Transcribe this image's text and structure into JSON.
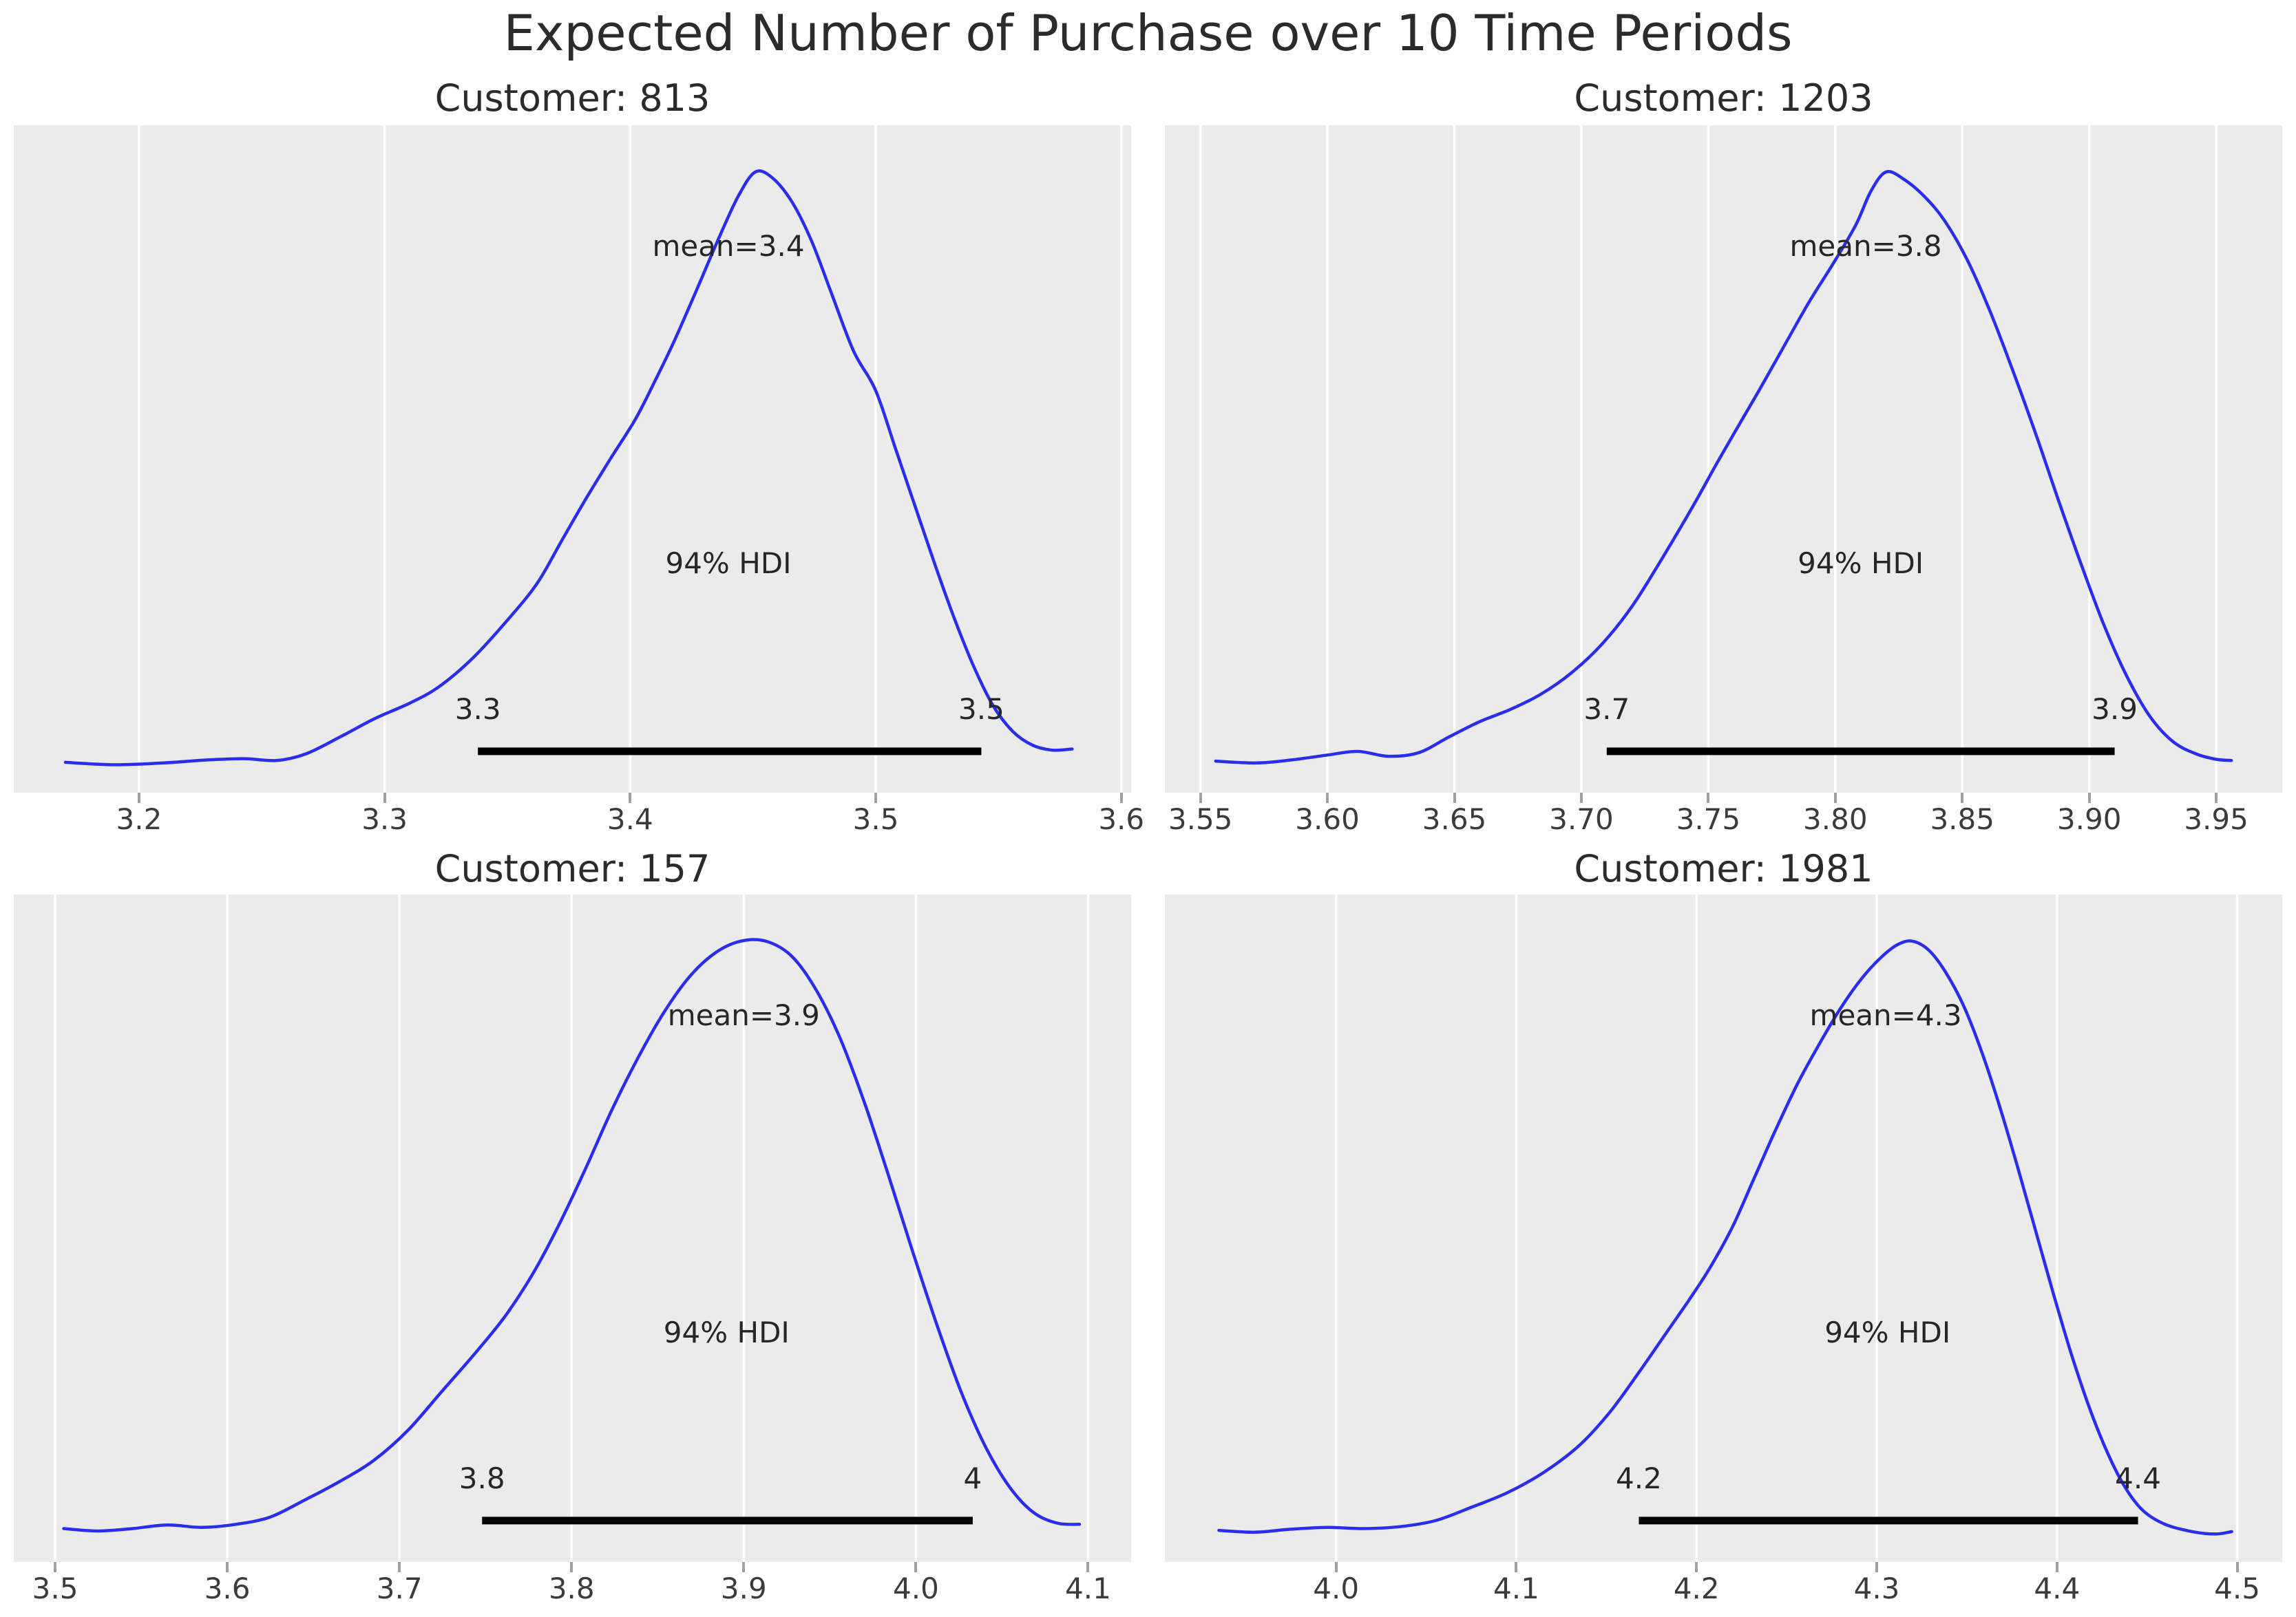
{
  "figure": {
    "title": "Expected Number of Purchase over 10 Time Periods"
  },
  "style": {
    "plot_bg": "#ebebeb",
    "grid_color": "#ffffff",
    "curve_color": "#2a2eec",
    "hdi_bar_color": "#000000",
    "tick_label_color": "#3b3b3b",
    "tick_mark_color": "#a0a0a0",
    "annotation_color": "#262626"
  },
  "chart_data": [
    {
      "type": "kde",
      "title": "Customer: 813",
      "mean": 3.4,
      "hdi_prob": 0.94,
      "hdi": [
        3.338,
        3.543
      ],
      "xlim": [
        3.149,
        3.604
      ],
      "xticks": [
        3.2,
        3.3,
        3.4,
        3.5,
        3.6
      ],
      "xtick_labels": [
        "3.2",
        "3.3",
        "3.4",
        "3.5",
        "3.6"
      ],
      "annotations": {
        "mean_label": "mean=3.4",
        "hdi_label": "94% HDI",
        "hdi_low_label": "3.3",
        "hdi_high_label": "3.5",
        "mean_label_x": 3.44,
        "hdi_label_x": 3.44
      },
      "curve": {
        "x": [
          3.17,
          3.19,
          3.21,
          3.228,
          3.243,
          3.256,
          3.268,
          3.282,
          3.296,
          3.31,
          3.322,
          3.336,
          3.35,
          3.362,
          3.372,
          3.382,
          3.392,
          3.402,
          3.41,
          3.418,
          3.427,
          3.436,
          3.444,
          3.451,
          3.458,
          3.466,
          3.474,
          3.482,
          3.491,
          3.5,
          3.508,
          3.516,
          3.524,
          3.532,
          3.54,
          3.548,
          3.556,
          3.564,
          3.572,
          3.58
        ],
        "density": [
          0.028,
          0.024,
          0.027,
          0.032,
          0.034,
          0.031,
          0.042,
          0.07,
          0.1,
          0.125,
          0.152,
          0.2,
          0.262,
          0.322,
          0.392,
          0.462,
          0.528,
          0.592,
          0.655,
          0.722,
          0.805,
          0.89,
          0.96,
          1.0,
          0.99,
          0.95,
          0.885,
          0.8,
          0.705,
          0.64,
          0.545,
          0.45,
          0.355,
          0.265,
          0.185,
          0.12,
          0.078,
          0.056,
          0.048,
          0.05
        ]
      }
    },
    {
      "type": "kde",
      "title": "Customer: 1203",
      "mean": 3.8,
      "hdi_prob": 0.94,
      "hdi": [
        3.71,
        3.91
      ],
      "xlim": [
        3.536,
        3.976
      ],
      "xticks": [
        3.55,
        3.6,
        3.65,
        3.7,
        3.75,
        3.8,
        3.85,
        3.9,
        3.95
      ],
      "xtick_labels": [
        "3.55",
        "3.60",
        "3.65",
        "3.70",
        "3.75",
        "3.80",
        "3.85",
        "3.90",
        "3.95"
      ],
      "annotations": {
        "mean_label": "mean=3.8",
        "hdi_label": "94% HDI",
        "hdi_low_label": "3.7",
        "hdi_high_label": "3.9",
        "mean_label_x": 3.812,
        "hdi_label_x": 3.81
      },
      "curve": {
        "x": [
          3.556,
          3.572,
          3.586,
          3.6,
          3.612,
          3.624,
          3.636,
          3.648,
          3.66,
          3.672,
          3.684,
          3.696,
          3.708,
          3.72,
          3.732,
          3.744,
          3.754,
          3.763,
          3.772,
          3.781,
          3.79,
          3.799,
          3.808,
          3.814,
          3.82,
          3.827,
          3.835,
          3.843,
          3.852,
          3.861,
          3.87,
          3.879,
          3.888,
          3.897,
          3.906,
          3.915,
          3.924,
          3.933,
          3.942,
          3.95,
          3.956
        ],
        "density": [
          0.03,
          0.027,
          0.032,
          0.04,
          0.046,
          0.038,
          0.044,
          0.07,
          0.095,
          0.115,
          0.14,
          0.175,
          0.222,
          0.285,
          0.365,
          0.45,
          0.525,
          0.59,
          0.655,
          0.722,
          0.788,
          0.848,
          0.912,
          0.968,
          1.0,
          0.988,
          0.96,
          0.92,
          0.855,
          0.77,
          0.672,
          0.568,
          0.458,
          0.352,
          0.252,
          0.168,
          0.103,
          0.062,
          0.042,
          0.033,
          0.031
        ]
      }
    },
    {
      "type": "kde",
      "title": "Customer: 157",
      "mean": 3.9,
      "hdi_prob": 0.94,
      "hdi": [
        3.748,
        4.033
      ],
      "xlim": [
        3.476,
        4.125
      ],
      "xticks": [
        3.5,
        3.6,
        3.7,
        3.8,
        3.9,
        4.0,
        4.1
      ],
      "xtick_labels": [
        "3.5",
        "3.6",
        "3.7",
        "3.8",
        "3.9",
        "4.0",
        "4.1"
      ],
      "annotations": {
        "mean_label": "mean=3.9",
        "hdi_label": "94% HDI",
        "hdi_low_label": "3.8",
        "hdi_high_label": "4",
        "mean_label_x": 3.9,
        "hdi_label_x": 3.89
      },
      "curve": {
        "x": [
          3.505,
          3.525,
          3.545,
          3.565,
          3.585,
          3.605,
          3.625,
          3.645,
          3.665,
          3.685,
          3.705,
          3.725,
          3.745,
          3.762,
          3.778,
          3.793,
          3.808,
          3.823,
          3.838,
          3.853,
          3.868,
          3.883,
          3.898,
          3.913,
          3.928,
          3.942,
          3.956,
          3.97,
          3.984,
          3.998,
          4.012,
          4.026,
          4.04,
          4.054,
          4.068,
          4.082,
          4.095
        ],
        "density": [
          0.033,
          0.029,
          0.033,
          0.039,
          0.035,
          0.04,
          0.052,
          0.08,
          0.11,
          0.145,
          0.195,
          0.26,
          0.325,
          0.385,
          0.455,
          0.535,
          0.625,
          0.72,
          0.805,
          0.88,
          0.94,
          0.98,
          1.0,
          1.0,
          0.975,
          0.92,
          0.84,
          0.735,
          0.615,
          0.49,
          0.37,
          0.26,
          0.17,
          0.103,
          0.06,
          0.042,
          0.04
        ]
      }
    },
    {
      "type": "kde",
      "title": "Customer: 1981",
      "mean": 4.3,
      "hdi_prob": 0.94,
      "hdi": [
        4.168,
        4.445
      ],
      "xlim": [
        3.905,
        4.525
      ],
      "xticks": [
        4.0,
        4.1,
        4.2,
        4.3,
        4.4,
        4.5
      ],
      "xtick_labels": [
        "4.0",
        "4.1",
        "4.2",
        "4.3",
        "4.4",
        "4.5"
      ],
      "annotations": {
        "mean_label": "mean=4.3",
        "hdi_label": "94% HDI",
        "hdi_low_label": "4.2",
        "hdi_high_label": "4.4",
        "mean_label_x": 4.305,
        "hdi_label_x": 4.306
      },
      "curve": {
        "x": [
          3.935,
          3.955,
          3.975,
          3.995,
          4.015,
          4.035,
          4.055,
          4.075,
          4.095,
          4.115,
          4.135,
          4.152,
          4.168,
          4.182,
          4.196,
          4.208,
          4.22,
          4.232,
          4.244,
          4.256,
          4.268,
          4.28,
          4.292,
          4.303,
          4.312,
          4.32,
          4.329,
          4.338,
          4.348,
          4.358,
          4.368,
          4.378,
          4.388,
          4.398,
          4.408,
          4.418,
          4.428,
          4.438,
          4.448,
          4.46,
          4.475,
          4.488,
          4.497
        ],
        "density": [
          0.03,
          0.027,
          0.032,
          0.035,
          0.033,
          0.036,
          0.046,
          0.068,
          0.092,
          0.125,
          0.17,
          0.225,
          0.29,
          0.35,
          0.41,
          0.465,
          0.53,
          0.61,
          0.69,
          0.765,
          0.83,
          0.89,
          0.94,
          0.975,
          0.995,
          1.0,
          0.985,
          0.95,
          0.895,
          0.82,
          0.73,
          0.63,
          0.525,
          0.42,
          0.32,
          0.232,
          0.158,
          0.1,
          0.062,
          0.04,
          0.028,
          0.024,
          0.028
        ]
      }
    }
  ]
}
